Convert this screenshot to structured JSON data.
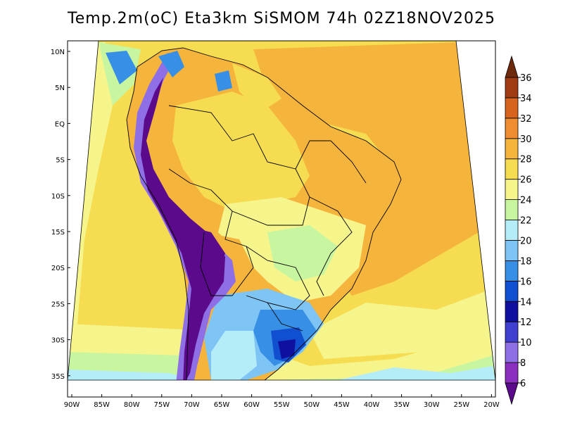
{
  "title": "Temp.2m(oC) Eta3km SiSMOM 74h 02Z18NOV2025",
  "lat_labels": [
    "10N",
    "5N",
    "EQ",
    "5S",
    "10S",
    "15S",
    "20S",
    "25S",
    "30S",
    "35S"
  ],
  "lon_labels": [
    "90W",
    "85W",
    "80W",
    "75W",
    "70W",
    "65W",
    "60W",
    "55W",
    "50W",
    "45W",
    "40W",
    "35W",
    "30W",
    "25W",
    "20W"
  ],
  "colorbar": {
    "labels": [
      "6",
      "8",
      "10",
      "12",
      "14",
      "16",
      "18",
      "20",
      "22",
      "24",
      "26",
      "28",
      "30",
      "32",
      "34",
      "36"
    ],
    "colors": [
      "#5a0a8a",
      "#8a2fbf",
      "#8f6fe6",
      "#4040d0",
      "#1010a0",
      "#1050d0",
      "#3890e6",
      "#7ec4f4",
      "#b4ecf8",
      "#c8f5a0",
      "#f5f58c",
      "#f5dc50",
      "#f5b43c",
      "#f08c32",
      "#d7641e",
      "#a03c14",
      "#6e2a0c"
    ]
  }
}
